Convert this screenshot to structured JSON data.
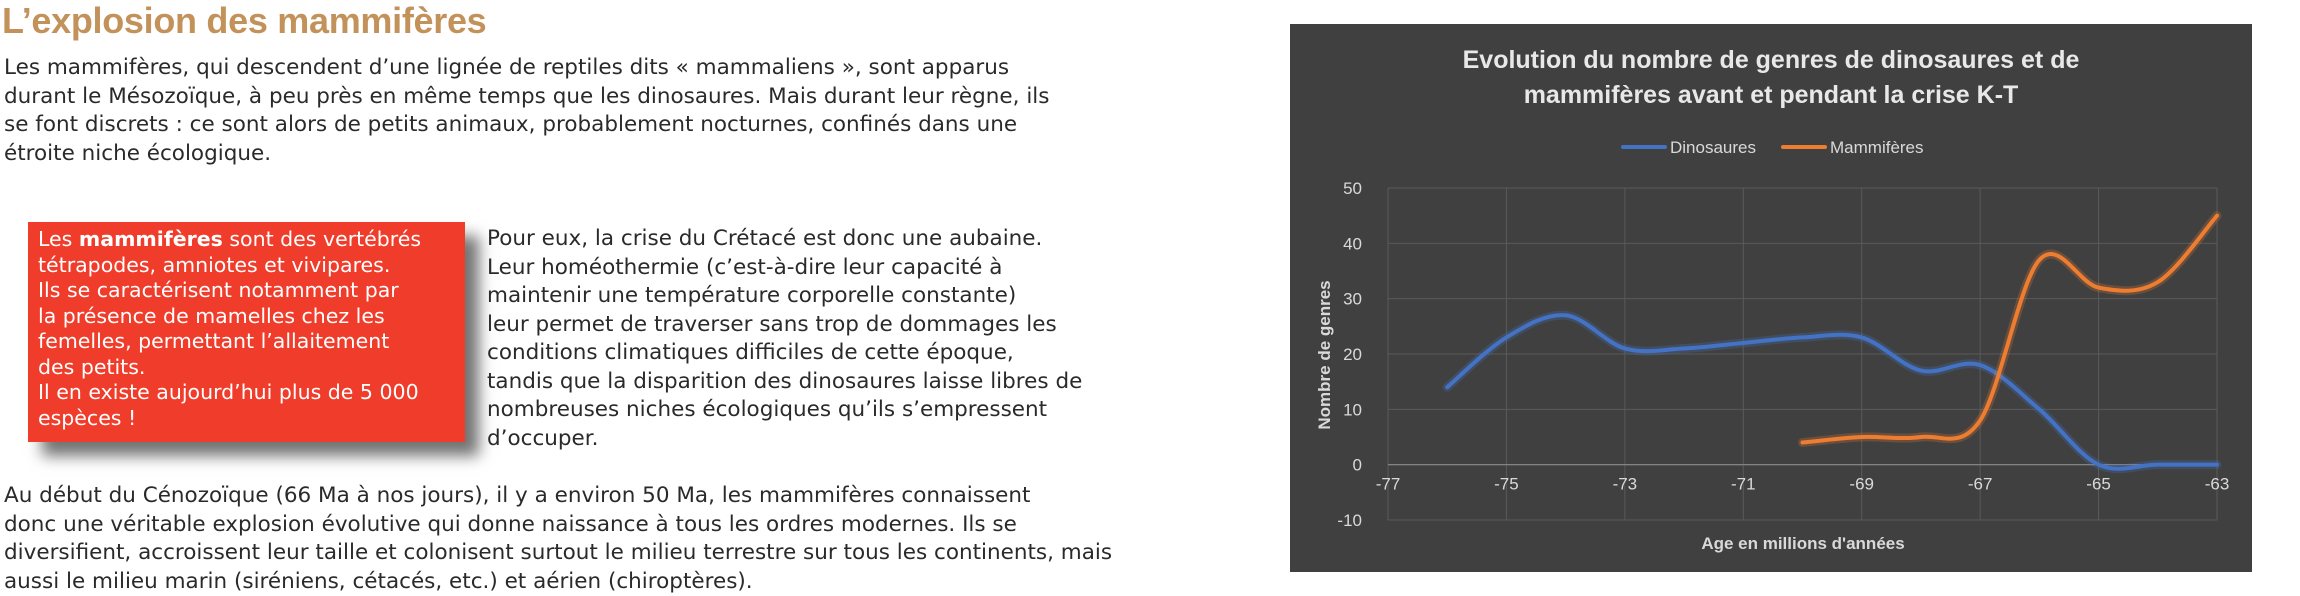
{
  "article": {
    "title": "L’explosion des mammifères",
    "intro": [
      "Les mammifères, qui descendent d’une lignée de reptiles dits « mammaliens », sont apparus",
      "durant le Mésozoïque, à peu près en même temps que les dinosaures. Mais durant leur règne, ils",
      "se font discrets : ce sont alors de petits animaux, probablement nocturnes, confinés dans une",
      "étroite niche écologique."
    ],
    "definition_box": {
      "lead": "Les ",
      "term": "mammifères",
      "lead_rest": " sont des vertébrés",
      "lines": [
        "tétrapodes, amniotes et vivipares.",
        "Ils se caractérisent notamment par",
        "la présence de mamelles chez les",
        "femelles, permettant l’allaitement",
        "des petits.",
        "Il en existe aujourd’hui plus de 5 000",
        "espèces !"
      ]
    },
    "crisis": [
      "Pour eux, la crise du Crétacé est donc une aubaine.",
      "Leur homéothermie (c’est-à-dire leur capacité à",
      "maintenir une température corporelle constante)",
      "leur permet de traverser sans trop de dommages les",
      "conditions climatiques difficiles de cette époque,",
      "tandis que la disparition des dinosaures laisse libres de",
      "nombreuses niches écologiques qu’ils s’empressent",
      "d’occuper."
    ],
    "cenozoic": [
      "Au début du Cénozoïque (66 Ma à nos jours), il y a environ 50 Ma, les mammifères connaissent",
      "donc une véritable explosion évolutive qui donne naissance à tous les ordres modernes. Ils se",
      "diversifient, accroissent leur taille et colonisent surtout le milieu terrestre sur tous les continents, mais",
      "aussi le milieu marin (siréniens, cétacés, etc.) et aérien (chiroptères)."
    ]
  },
  "chart_data": {
    "type": "line",
    "title_lines": [
      "Evolution du nombre de genres de dinosaures et de",
      "mammifères avant et pendant la crise K-T"
    ],
    "xlabel": "Age en millions d'années",
    "ylabel": "Nombre de genres",
    "xlim": [
      -77,
      -63
    ],
    "ylim": [
      -10,
      50
    ],
    "xticks": [
      -77,
      -75,
      -73,
      -71,
      -69,
      -67,
      -65,
      -63
    ],
    "yticks": [
      -10,
      0,
      10,
      20,
      30,
      40,
      50
    ],
    "grid": true,
    "legend_position": "top",
    "background": "#404040",
    "series": [
      {
        "name": "Dinosaures",
        "color": "#4472c4",
        "points": [
          [
            -76,
            14
          ],
          [
            -75,
            23
          ],
          [
            -74,
            27
          ],
          [
            -73,
            21
          ],
          [
            -72,
            21
          ],
          [
            -71,
            22
          ],
          [
            -70,
            23
          ],
          [
            -69,
            23
          ],
          [
            -68,
            17
          ],
          [
            -67,
            18
          ],
          [
            -66,
            10
          ],
          [
            -65,
            0
          ],
          [
            -64,
            0
          ],
          [
            -63,
            0
          ]
        ]
      },
      {
        "name": "Mammifères",
        "color": "#ed7d31",
        "points": [
          [
            -70,
            4
          ],
          [
            -69,
            5
          ],
          [
            -68,
            5
          ],
          [
            -67,
            8
          ],
          [
            -66,
            37
          ],
          [
            -65,
            32
          ],
          [
            -64,
            33
          ],
          [
            -63,
            45
          ]
        ]
      }
    ]
  }
}
